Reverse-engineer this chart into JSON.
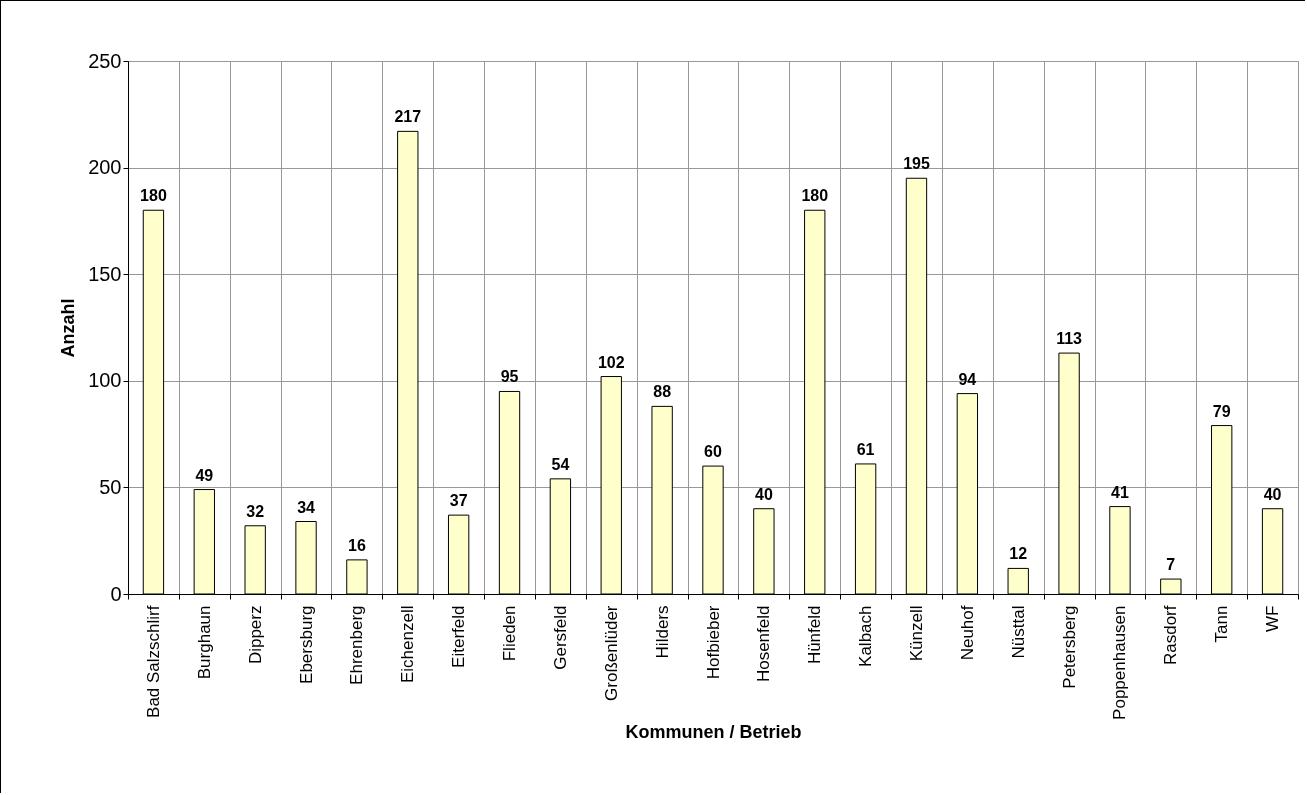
{
  "chart_data": {
    "type": "bar",
    "xlabel": "Kommunen / Betrieb",
    "ylabel": "Anzahl",
    "categories": [
      "Bad Salzschlirf",
      "Burghaun",
      "Dipperz",
      "Ebersburg",
      "Ehrenberg",
      "Eichenzell",
      "Eiterfeld",
      "Flieden",
      "Gersfeld",
      "Großenlüder",
      "Hilders",
      "Hofbieber",
      "Hosenfeld",
      "Hünfeld",
      "Kalbach",
      "Künzell",
      "Neuhof",
      "Nüsttal",
      "Petersberg",
      "Poppenhausen",
      "Rasdorf",
      "Tann",
      "WF"
    ],
    "values": [
      180,
      49,
      32,
      34,
      16,
      217,
      37,
      95,
      54,
      102,
      88,
      60,
      40,
      180,
      61,
      195,
      94,
      12,
      113,
      41,
      7,
      79,
      40
    ],
    "color": "#ffffcc",
    "ylim": [
      0,
      250
    ],
    "yticks": [
      0,
      50,
      100,
      150,
      200,
      250
    ],
    "grid": true,
    "data_labels": true
  }
}
